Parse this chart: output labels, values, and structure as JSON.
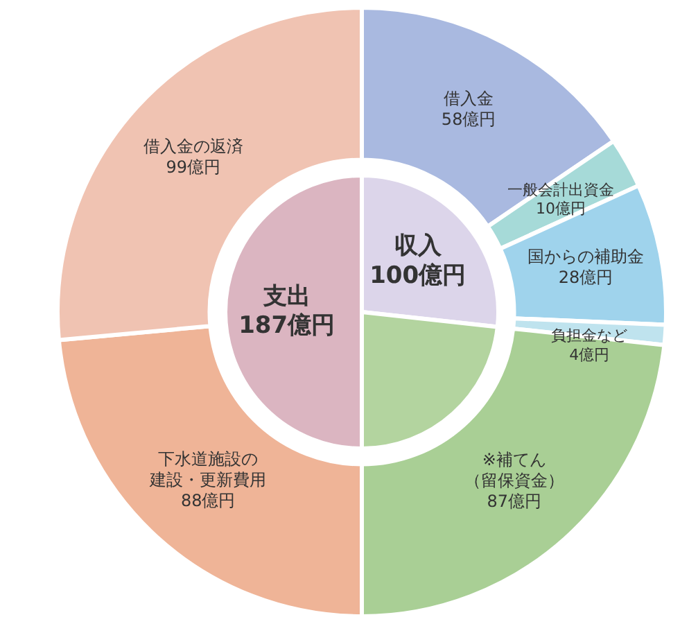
{
  "chart_data": [
    {
      "type": "donut",
      "categories": [
        "借入金",
        "一般会計出資金",
        "国からの補助金",
        "負担金など",
        "※補てん（留保資金）",
        "下水道施設の建設・更新費用",
        "借入金の返済"
      ],
      "values": [
        58,
        10,
        28,
        4,
        87,
        88,
        99
      ],
      "colors": [
        "#a9b9e0",
        "#a6dad8",
        "#9fd3ec",
        "#bfe3ee",
        "#a9cf95",
        "#efb497",
        "#f0c3b2"
      ],
      "value_labels": [
        "58億円",
        "10億円",
        "28億円",
        "4億円",
        "87億円",
        "88億円",
        "99億円"
      ]
    },
    {
      "type": "pie",
      "categories": [
        "収入",
        null,
        "支出"
      ],
      "values": [
        100,
        87,
        187
      ],
      "colors": [
        "#dcd5ea",
        "#b3d49f",
        "#dbb5c1"
      ],
      "value_labels": [
        "100億円",
        null,
        "187億円"
      ]
    }
  ]
}
